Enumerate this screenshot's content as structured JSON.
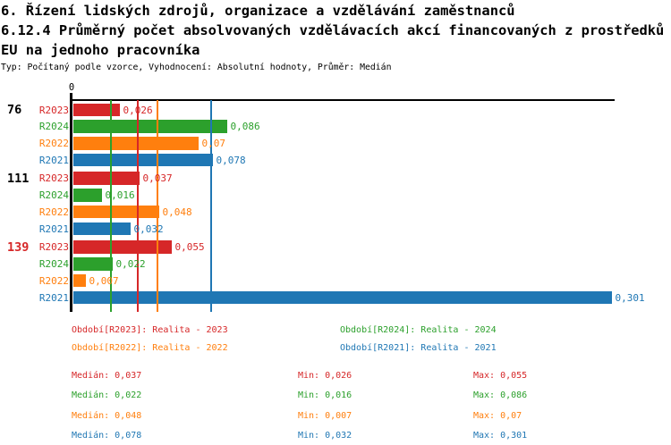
{
  "page": {
    "title_line1": "6. Řízení lidských zdrojů, organizace a vzdělávání zaměstnanců",
    "title_line2": "6.12.4 Průměrný počet absolvovaných vzdělávacích akcí financovaných z prostředků",
    "title_line3": "EU na jednoho pracovníka",
    "subtitle": "Typ: Počítaný podle vzorce, Vyhodnocení: Absolutní hodnoty, Průměr: Medián"
  },
  "chart_data": {
    "type": "bar",
    "orientation": "horizontal",
    "title": "6.12.4 Průměrný počet absolvovaných vzdělávacích akcí financovaných z prostředků EU na jednoho pracovníka",
    "axis": {
      "zero_label": "0",
      "x_min": 0,
      "x_max_shown": 0.301,
      "grid": "median reference lines only"
    },
    "series_colors": {
      "R2023": "#d62728",
      "R2024": "#2ca02c",
      "R2022": "#ff7f0e",
      "R2021": "#1f77b4"
    },
    "groups": [
      {
        "label": "76",
        "label_color": "#000000",
        "bars": [
          {
            "series": "R2023",
            "value": 0.026,
            "display": "0,026"
          },
          {
            "series": "R2024",
            "value": 0.086,
            "display": "0,086"
          },
          {
            "series": "R2022",
            "value": 0.07,
            "display": "0,07"
          },
          {
            "series": "R2021",
            "value": 0.078,
            "display": "0,078"
          }
        ]
      },
      {
        "label": "111",
        "label_color": "#000000",
        "bars": [
          {
            "series": "R2023",
            "value": 0.037,
            "display": "0,037"
          },
          {
            "series": "R2024",
            "value": 0.016,
            "display": "0,016"
          },
          {
            "series": "R2022",
            "value": 0.048,
            "display": "0,048"
          },
          {
            "series": "R2021",
            "value": 0.032,
            "display": "0,032"
          }
        ]
      },
      {
        "label": "139",
        "label_color": "#d62728",
        "bars": [
          {
            "series": "R2023",
            "value": 0.055,
            "display": "0,055"
          },
          {
            "series": "R2024",
            "value": 0.022,
            "display": "0,022"
          },
          {
            "series": "R2022",
            "value": 0.007,
            "display": "0,007"
          },
          {
            "series": "R2021",
            "value": 0.301,
            "display": "0,301"
          }
        ]
      }
    ],
    "median_lines": [
      {
        "series": "R2024",
        "value": 0.022
      },
      {
        "series": "R2023",
        "value": 0.037
      },
      {
        "series": "R2022",
        "value": 0.048
      },
      {
        "series": "R2021",
        "value": 0.078
      }
    ],
    "legend": [
      {
        "series": "R2023",
        "label": "Období[R2023]: Realita - 2023"
      },
      {
        "series": "R2024",
        "label": "Období[R2024]: Realita - 2024"
      },
      {
        "series": "R2022",
        "label": "Období[R2022]: Realita - 2022"
      },
      {
        "series": "R2021",
        "label": "Období[R2021]: Realita - 2021"
      }
    ],
    "stats": [
      {
        "series": "R2023",
        "median": "Medián: 0,037",
        "min": "Min: 0,026",
        "max": "Max: 0,055"
      },
      {
        "series": "R2024",
        "median": "Medián: 0,022",
        "min": "Min: 0,016",
        "max": "Max: 0,086"
      },
      {
        "series": "R2022",
        "median": "Medián: 0,048",
        "min": "Min: 0,007",
        "max": "Max: 0,07"
      },
      {
        "series": "R2021",
        "median": "Medián: 0,078",
        "min": "Min: 0,032",
        "max": "Max: 0,301"
      }
    ]
  }
}
